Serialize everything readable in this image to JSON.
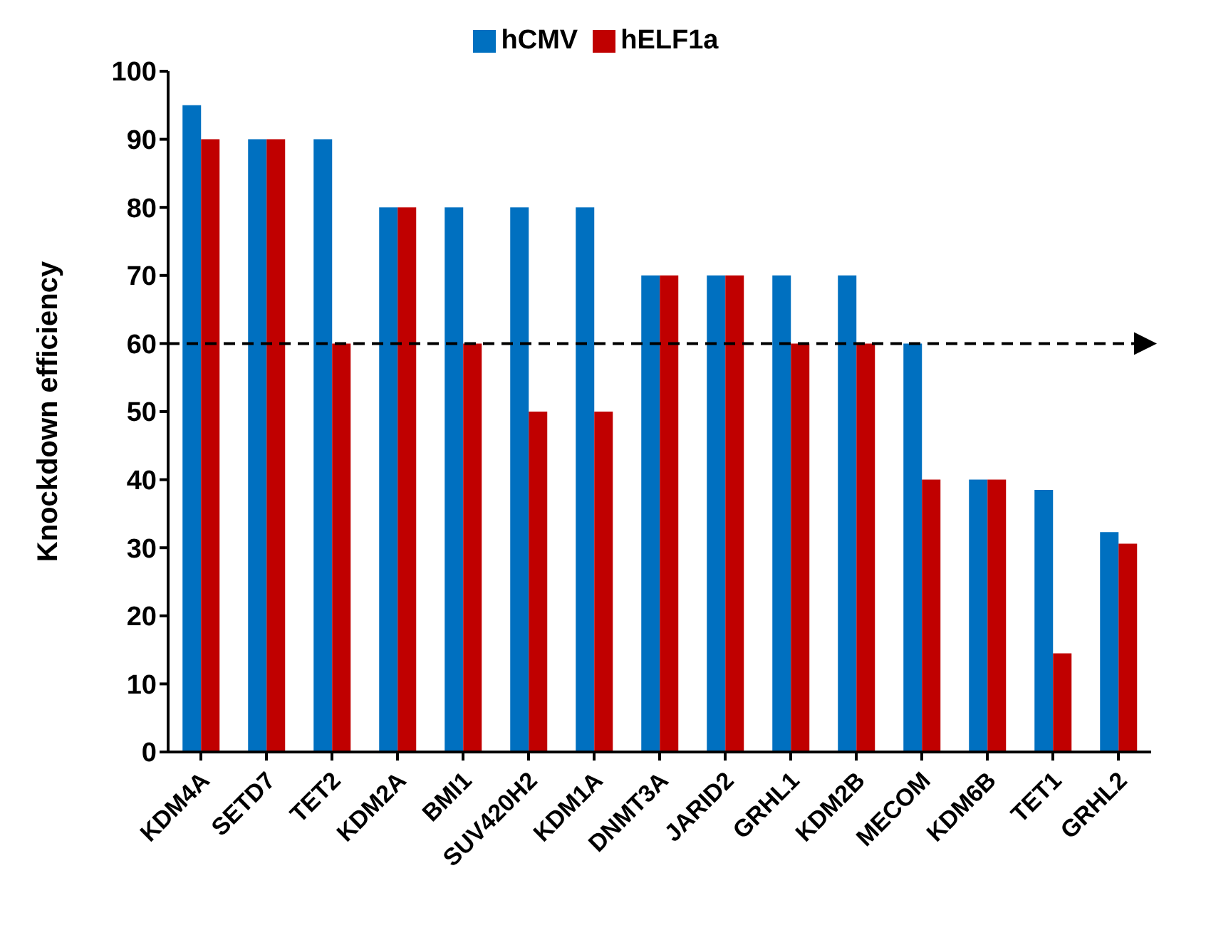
{
  "chart_data": {
    "type": "bar",
    "ylabel": "Knockdown efficiency",
    "categories": [
      "KDM4A",
      "SETD7",
      "TET2",
      "KDM2A",
      "BMI1",
      "SUV420H2",
      "KDM1A",
      "DNMT3A",
      "JARID2",
      "GRHL1",
      "KDM2B",
      "MECOM",
      "KDM6B",
      "TET1",
      "GRHL2"
    ],
    "series": [
      {
        "name": "hCMV",
        "color": "#0070c0",
        "values": [
          95,
          90,
          90,
          80,
          80,
          80,
          80,
          70,
          70,
          70,
          70,
          60,
          40,
          38.5,
          32.3
        ]
      },
      {
        "name": "hELF1a",
        "color": "#c00000",
        "values": [
          90,
          90,
          60,
          80,
          60,
          50,
          50,
          70,
          70,
          60,
          60,
          40,
          40,
          14.5,
          30.6
        ]
      }
    ],
    "ylim": [
      0,
      100
    ],
    "yticks": [
      0,
      10,
      20,
      30,
      40,
      50,
      60,
      70,
      80,
      90,
      100
    ],
    "grid": false,
    "legend": "top",
    "ref_lines": [
      {
        "axis": "y",
        "value": 60,
        "color": "#000000",
        "line_style": "dashed"
      }
    ]
  }
}
